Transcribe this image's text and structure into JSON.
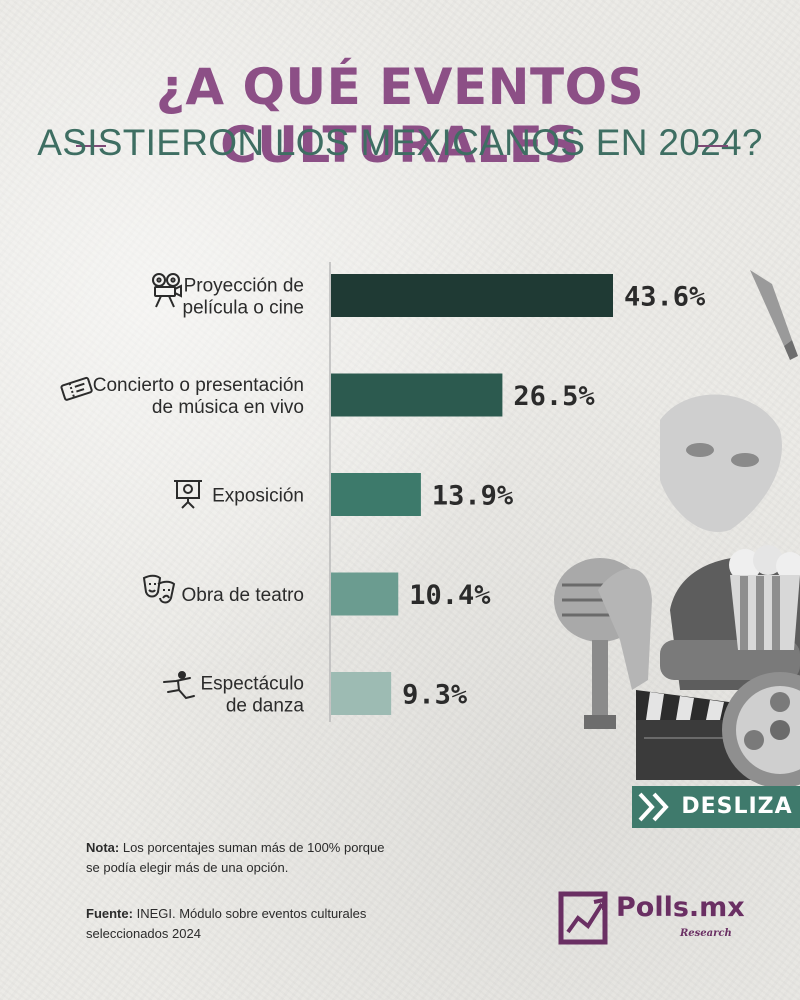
{
  "title": {
    "line1": "¿A QUÉ EVENTOS CULTURALES",
    "line2": "ASISTIERON LOS MEXICANOS EN 2024?"
  },
  "chart_data": {
    "type": "bar",
    "orientation": "horizontal",
    "categories": [
      [
        "Proyección de",
        "película o cine"
      ],
      [
        "Concierto o presentación",
        "de música en vivo"
      ],
      [
        "Exposición"
      ],
      [
        "Obra de teatro"
      ],
      [
        "Espectáculo",
        "de danza"
      ]
    ],
    "values": [
      43.6,
      26.5,
      13.9,
      10.4,
      9.3
    ],
    "value_labels": [
      "43.6%",
      "26.5%",
      "13.9%",
      "10.4%",
      "9.3%"
    ],
    "xlim": [
      0,
      43.6
    ],
    "colors": [
      "#1f3a34",
      "#2c5a4f",
      "#3d7a6b",
      "#6b9c90",
      "#9dbbb3"
    ],
    "icons": [
      "film-projector-icon",
      "tickets-icon",
      "exhibition-easel-icon",
      "theater-masks-icon",
      "dancer-icon"
    ]
  },
  "cta": {
    "label": "DESLIZA"
  },
  "notes": {
    "nota_label": "Nota:",
    "nota_text": "Los porcentajes suman más de 100% porque se podía elegir más de una opción.",
    "fuente_label": "Fuente:",
    "fuente_text": "INEGI. Módulo sobre eventos culturales seleccionados 2024"
  },
  "brand": {
    "name": "Polls.mx",
    "sub": "Research"
  }
}
